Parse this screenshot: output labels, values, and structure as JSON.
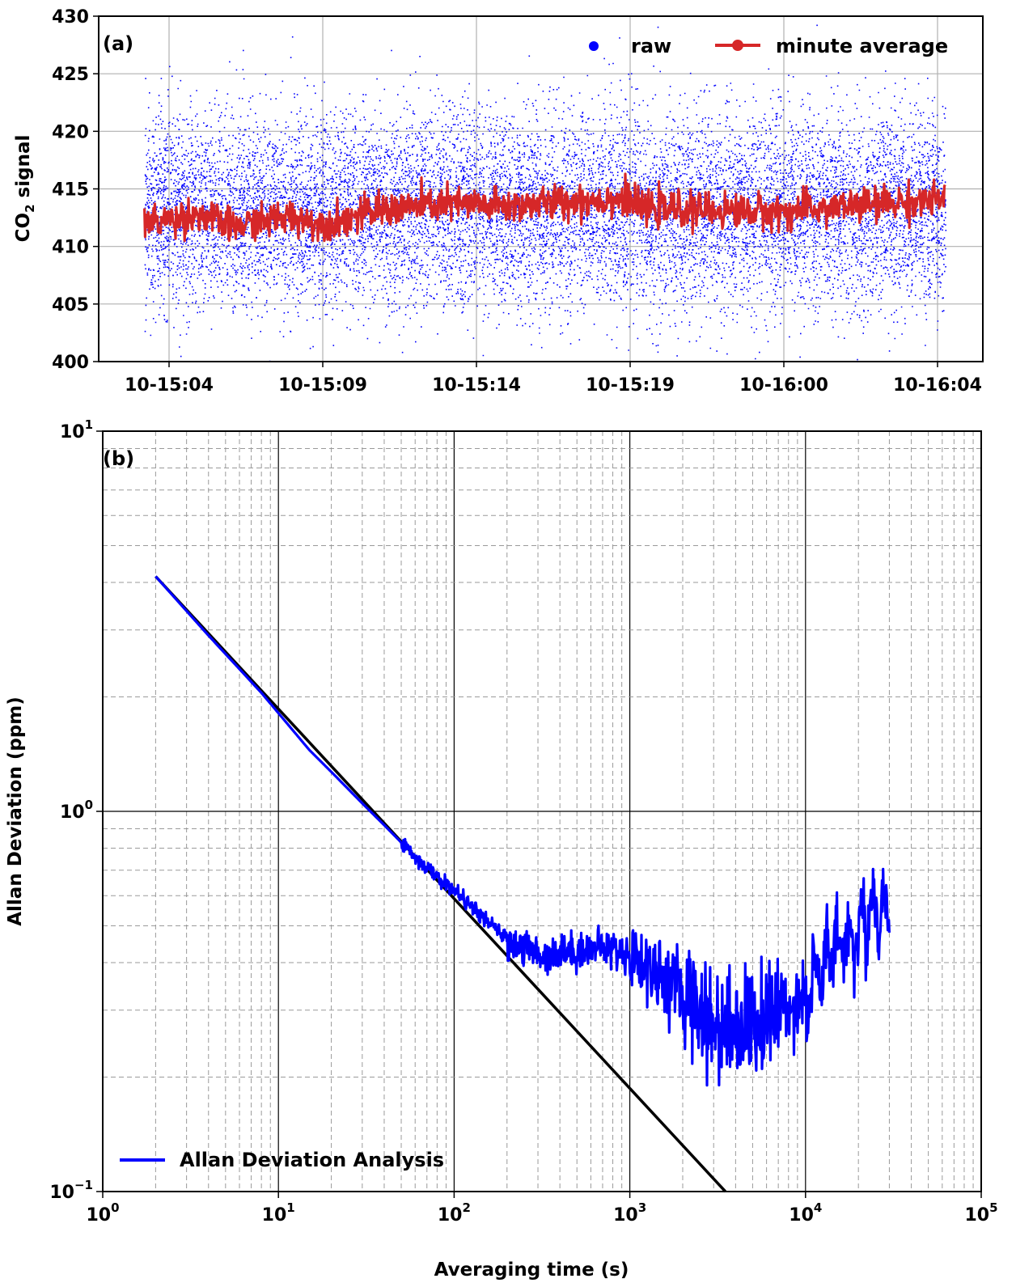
{
  "chart_data": [
    {
      "type": "scatter",
      "panel_label": "(a)",
      "ylabel": "CO₂ signal",
      "ylabel_base": "CO",
      "ylabel_sub": "2",
      "ylabel_rest": " signal",
      "xlabel": "",
      "x_categories": [
        "10-15:04",
        "10-15:09",
        "10-15:14",
        "10-15:19",
        "10-16:00",
        "10-16:04"
      ],
      "x_range": [
        "10-15:02.4",
        "10-16:05.1"
      ],
      "ylim": [
        400,
        430
      ],
      "yticks": [
        "400",
        "405",
        "410",
        "415",
        "420",
        "425",
        "430"
      ],
      "grid": true,
      "legend": {
        "placement": "top-right"
      },
      "data_span": [
        "10-15:03.2",
        "10-16:04.2"
      ],
      "series": [
        {
          "name": "raw",
          "color": "#0000ff",
          "marker": "point",
          "mean": 413.2,
          "std": 4.2
        },
        {
          "name": "minute average",
          "color": "#d62728",
          "marker": "line",
          "mean": 413.2,
          "range": [
            410.5,
            416.3
          ],
          "profile_x": [
            "10-15:03.2",
            "10-15:05",
            "10-15:06",
            "10-15:08",
            "10-15:09",
            "10-15:11",
            "10-15:13",
            "10-15:15",
            "10-15:17",
            "10-15:19",
            "10-15:21",
            "10-16:00",
            "10-16:02",
            "10-16:04.2"
          ],
          "profile_y": [
            412.0,
            412.8,
            411.7,
            412.6,
            411.9,
            413.2,
            413.7,
            413.5,
            413.9,
            414.2,
            413.3,
            413.0,
            413.6,
            414.1
          ]
        }
      ]
    },
    {
      "type": "line",
      "panel_label": "(b)",
      "xlabel": "Averaging time (s)",
      "ylabel": "Allan Deviation (ppm)",
      "x_scale": "log",
      "y_scale": "log",
      "xlim": [
        1,
        100000
      ],
      "ylim": [
        0.1,
        10
      ],
      "x_tick_labels": [
        {
          "base": "10",
          "exp": "0"
        },
        {
          "base": "10",
          "exp": "1"
        },
        {
          "base": "10",
          "exp": "2"
        },
        {
          "base": "10",
          "exp": "3"
        },
        {
          "base": "10",
          "exp": "4"
        },
        {
          "base": "10",
          "exp": "5"
        }
      ],
      "y_tick_labels": [
        {
          "base": "10",
          "exp": "−1"
        },
        {
          "base": "10",
          "exp": "0"
        },
        {
          "base": "10",
          "exp": "1"
        }
      ],
      "grid": true,
      "legend": {
        "placement": "bottom-left"
      },
      "series": [
        {
          "name": "Allan Deviation Analysis",
          "color": "#0000ff",
          "x": [
            2,
            4,
            8,
            15,
            20,
            30,
            40,
            60,
            80,
            100,
            150,
            200,
            300,
            500,
            700,
            1000,
            1500,
            2000,
            2500,
            3000,
            4000,
            5000,
            7000,
            10000,
            12000,
            15000,
            20000,
            25000,
            30000
          ],
          "y": [
            4.15,
            2.9,
            2.05,
            1.45,
            1.27,
            1.05,
            0.92,
            0.76,
            0.67,
            0.62,
            0.52,
            0.46,
            0.42,
            0.43,
            0.44,
            0.42,
            0.37,
            0.33,
            0.31,
            0.27,
            0.28,
            0.27,
            0.3,
            0.33,
            0.38,
            0.44,
            0.48,
            0.57,
            0.53
          ]
        },
        {
          "name": "",
          "color": "#000000",
          "x": [
            2,
            3500
          ],
          "y": [
            4.15,
            0.1
          ]
        }
      ]
    }
  ]
}
